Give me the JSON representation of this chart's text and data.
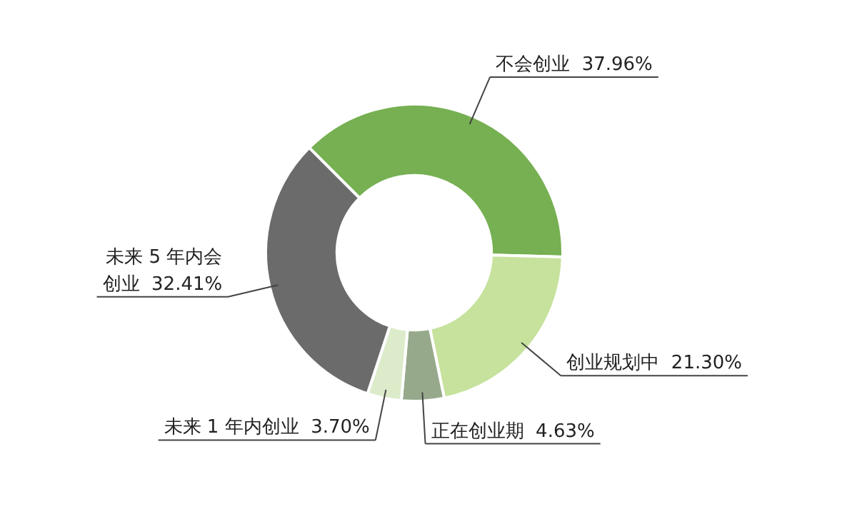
{
  "chart_data": {
    "type": "donut",
    "categories": [
      "不会创业",
      "创业规划中",
      "正在创业期",
      "未来 1 年内创业",
      "未来 5 年内会创业"
    ],
    "values": [
      37.96,
      21.3,
      4.63,
      3.7,
      32.41
    ],
    "value_labels": [
      "37.96%",
      "21.30%",
      "4.63%",
      "3.70%",
      "32.41%"
    ],
    "colors": [
      "#76b052",
      "#c6e29c",
      "#97a98b",
      "#dcebc9",
      "#6b6b6b"
    ],
    "legend": false
  }
}
